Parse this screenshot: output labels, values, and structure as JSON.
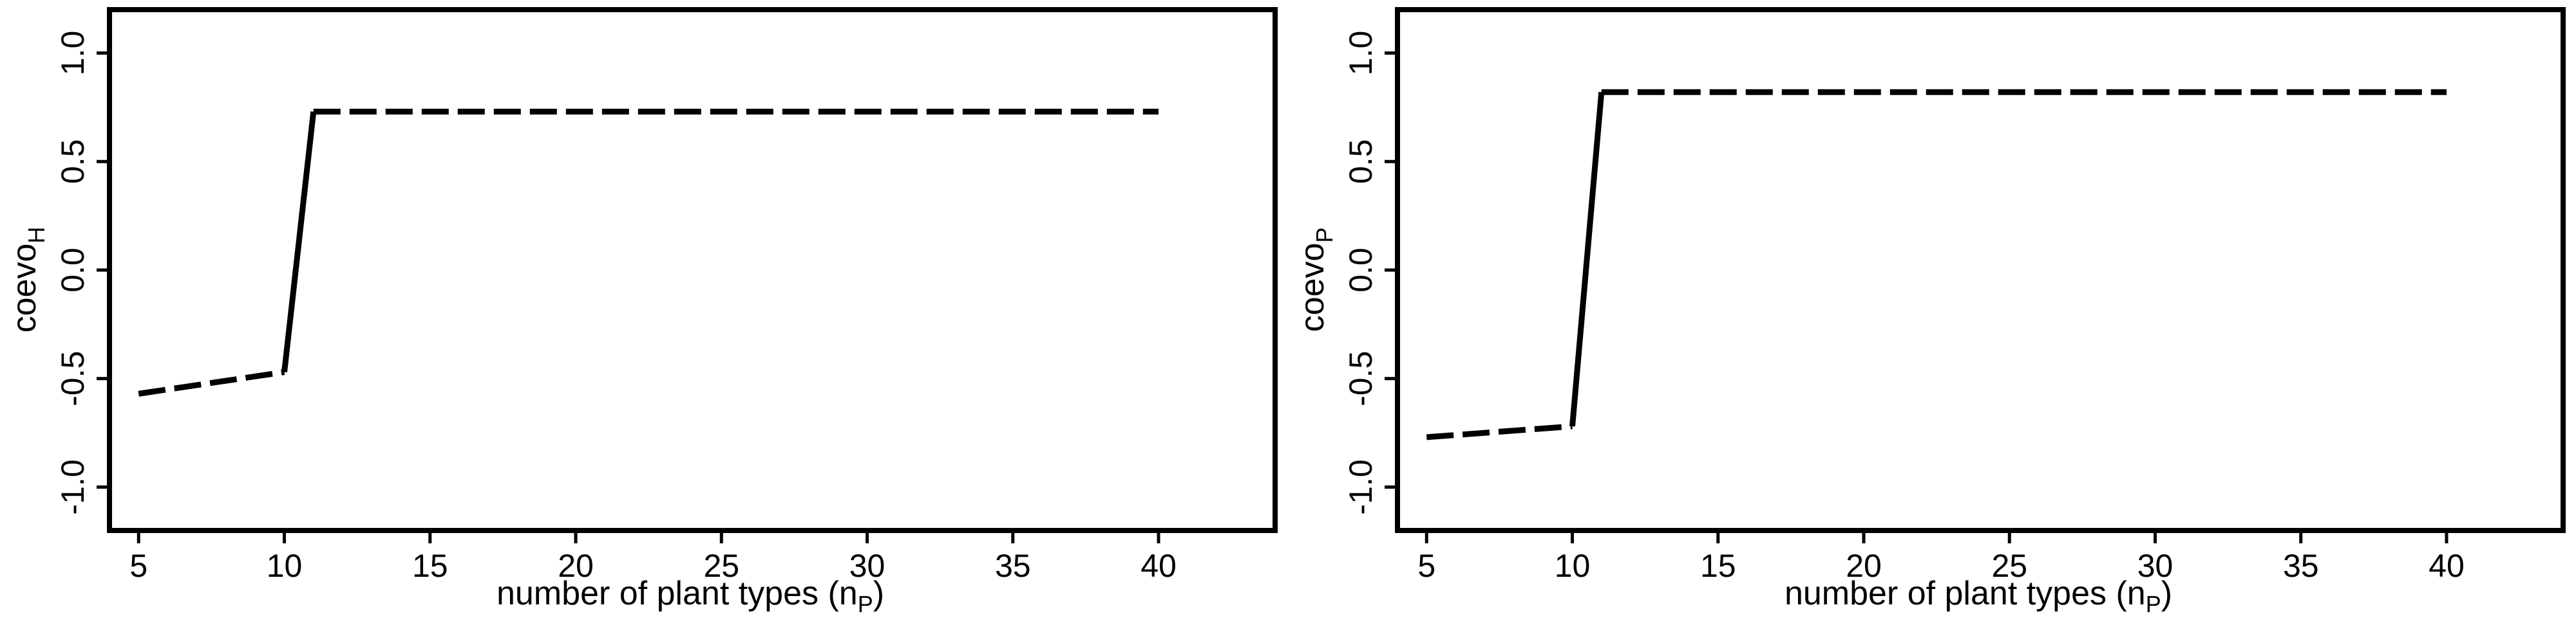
{
  "chart_data": [
    {
      "type": "line",
      "xlabel": "number of plant types (n",
      "xlabel_sub": "P",
      "xlabel_close": ")",
      "ylabel": "coevo",
      "ylabel_sub": "H",
      "xlim": [
        4,
        44
      ],
      "ylim": [
        -1.2,
        1.2
      ],
      "xticks": [
        5,
        10,
        15,
        20,
        25,
        30,
        35,
        40
      ],
      "yticks": [
        -1.0,
        -0.5,
        0.0,
        0.5,
        1.0
      ],
      "ytick_labels": [
        "-1.0",
        "-0.5",
        "0.0",
        "0.5",
        "1.0"
      ],
      "grid": false,
      "series": [
        {
          "segments": [
            {
              "style": "dashed",
              "x": [
                5,
                10
              ],
              "y": [
                -0.57,
                -0.47
              ]
            },
            {
              "style": "solid",
              "x": [
                10,
                11
              ],
              "y": [
                -0.47,
                0.73
              ]
            },
            {
              "style": "dashed",
              "x": [
                11,
                40
              ],
              "y": [
                0.73,
                0.73
              ]
            }
          ]
        }
      ]
    },
    {
      "type": "line",
      "xlabel": "number of plant types (n",
      "xlabel_sub": "P",
      "xlabel_close": ")",
      "ylabel": "coevo",
      "ylabel_sub": "P",
      "xlim": [
        4,
        44
      ],
      "ylim": [
        -1.2,
        1.2
      ],
      "xticks": [
        5,
        10,
        15,
        20,
        25,
        30,
        35,
        40
      ],
      "yticks": [
        -1.0,
        -0.5,
        0.0,
        0.5,
        1.0
      ],
      "ytick_labels": [
        "-1.0",
        "-0.5",
        "0.0",
        "0.5",
        "1.0"
      ],
      "grid": false,
      "series": [
        {
          "segments": [
            {
              "style": "dashed",
              "x": [
                5,
                10
              ],
              "y": [
                -0.77,
                -0.72
              ]
            },
            {
              "style": "solid",
              "x": [
                10,
                11
              ],
              "y": [
                -0.72,
                0.82
              ]
            },
            {
              "style": "dashed",
              "x": [
                11,
                40
              ],
              "y": [
                0.82,
                0.82
              ]
            }
          ]
        }
      ]
    }
  ]
}
